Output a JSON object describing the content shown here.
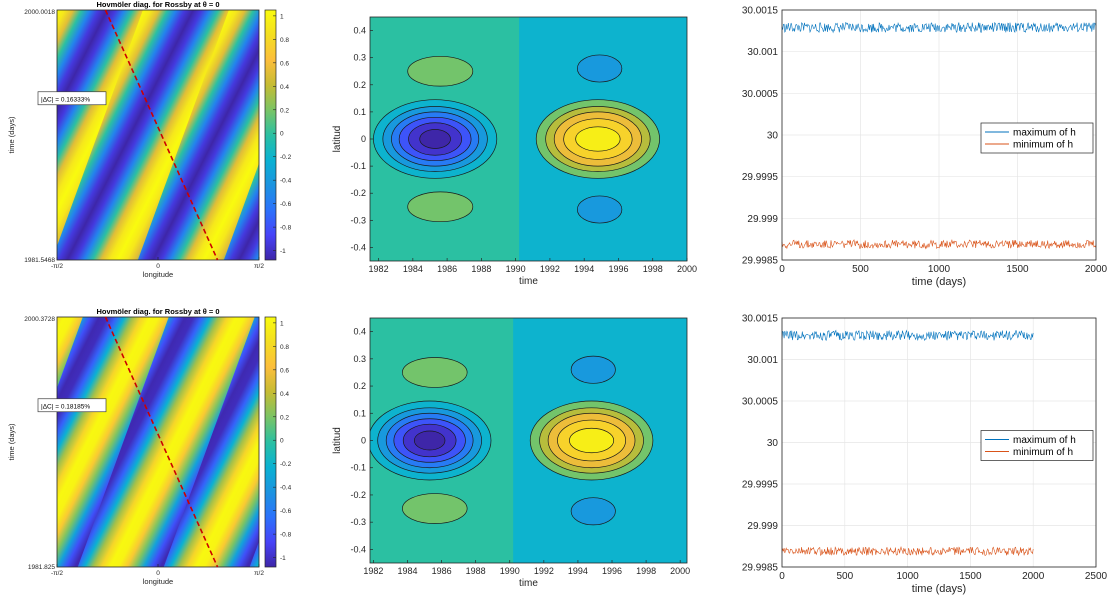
{
  "palette": {
    "parula": [
      "#3e26a8",
      "#4743f8",
      "#2c72fb",
      "#1b94e0",
      "#0ab2d2",
      "#2bc0a2",
      "#7ac465",
      "#c5bc33",
      "#fcbe3c",
      "#f4de21",
      "#f9fb0e"
    ],
    "max_line": "#0072bd",
    "min_line": "#d95319",
    "ref_line": "#cc0000"
  },
  "chart_data": [
    {
      "type": "heatmap",
      "title": "Hovmöler diag. for Rossby at θ = 0",
      "xlabel": "longitude",
      "ylabel": "time (days)",
      "xticks": [
        "-π/2",
        "0",
        "π/2"
      ],
      "yticks": [
        "1981.5468",
        "2000.0018"
      ],
      "annotation": "|ΔC| = 0.16333%",
      "colorbar": {
        "ticks": [
          1,
          0.8,
          0.6,
          0.4,
          0.2,
          0,
          -0.2,
          -0.4,
          -0.6,
          -0.8,
          -1
        ],
        "range": [
          -1.08,
          1.05
        ]
      },
      "stripe_phase": 0,
      "ref_line": {
        "lon": [
          -0.55,
          0.55
        ],
        "t": [
          "2000.0018",
          "1981.5468"
        ]
      }
    },
    {
      "type": "contour",
      "xlabel": "time",
      "ylabel": "latitud",
      "xlim": [
        1981.5,
        2000
      ],
      "ylim": [
        -0.45,
        0.45
      ],
      "xticks": [
        1982,
        1984,
        1986,
        1988,
        1990,
        1992,
        1994,
        1996,
        1998,
        2000
      ],
      "yticks": [
        0.4,
        0.3,
        0.2,
        0.1,
        0,
        -0.1,
        -0.2,
        -0.3,
        -0.4
      ]
    },
    {
      "type": "line",
      "xlabel": "time (days)",
      "xlim": [
        0,
        2000
      ],
      "ylim": [
        29.9985,
        30.0015
      ],
      "xticks": [
        0,
        500,
        1000,
        1500,
        2000
      ],
      "yticks": [
        "30.0015",
        "30.001",
        "30.0005",
        "30",
        "29.9995",
        "29.999",
        "29.9985"
      ],
      "series": [
        {
          "name": "maximum of h",
          "level": 30.00129,
          "amp": 6e-05,
          "x_end": 2000
        },
        {
          "name": "minimum of h",
          "level": 29.99869,
          "amp": 5e-05,
          "x_end": 2000
        }
      ],
      "legend": "center-right"
    },
    {
      "type": "heatmap",
      "title": "Hovmöler diag. for Rossby at θ = 0",
      "xlabel": "longitude",
      "ylabel": "time (days)",
      "xticks": [
        "-π/2",
        "0",
        "π/2"
      ],
      "yticks": [
        "1981.825",
        "2000.3728"
      ],
      "annotation": "|ΔC| = 0.18185%",
      "colorbar": {
        "ticks": [
          1,
          0.8,
          0.6,
          0.4,
          0.2,
          0,
          -0.2,
          -0.4,
          -0.6,
          -0.8,
          -1
        ],
        "range": [
          -1.08,
          1.05
        ]
      },
      "stripe_phase": 0.3,
      "ref_line": {
        "lon": [
          -0.55,
          0.55
        ],
        "t": [
          "2000.3728",
          "1981.825"
        ]
      }
    },
    {
      "type": "contour",
      "xlabel": "time",
      "ylabel": "latitud",
      "xlim": [
        1981.8,
        2000.4
      ],
      "ylim": [
        -0.45,
        0.45
      ],
      "xticks": [
        1982,
        1984,
        1986,
        1988,
        1990,
        1992,
        1994,
        1996,
        1998,
        2000
      ],
      "yticks": [
        0.4,
        0.3,
        0.2,
        0.1,
        0,
        -0.1,
        -0.2,
        -0.3,
        -0.4
      ]
    },
    {
      "type": "line",
      "xlabel": "time (days)",
      "xlim": [
        0,
        2500
      ],
      "ylim": [
        29.9985,
        30.0015
      ],
      "xticks": [
        0,
        500,
        1000,
        1500,
        2000,
        2500
      ],
      "yticks": [
        "30.0015",
        "30.001",
        "30.0005",
        "30",
        "29.9995",
        "29.999",
        "29.9985"
      ],
      "series": [
        {
          "name": "maximum of h",
          "level": 30.00129,
          "amp": 6e-05,
          "x_end": 2000
        },
        {
          "name": "minimum of h",
          "level": 29.99869,
          "amp": 5e-05,
          "x_end": 2000
        }
      ],
      "legend": "center-right"
    }
  ]
}
